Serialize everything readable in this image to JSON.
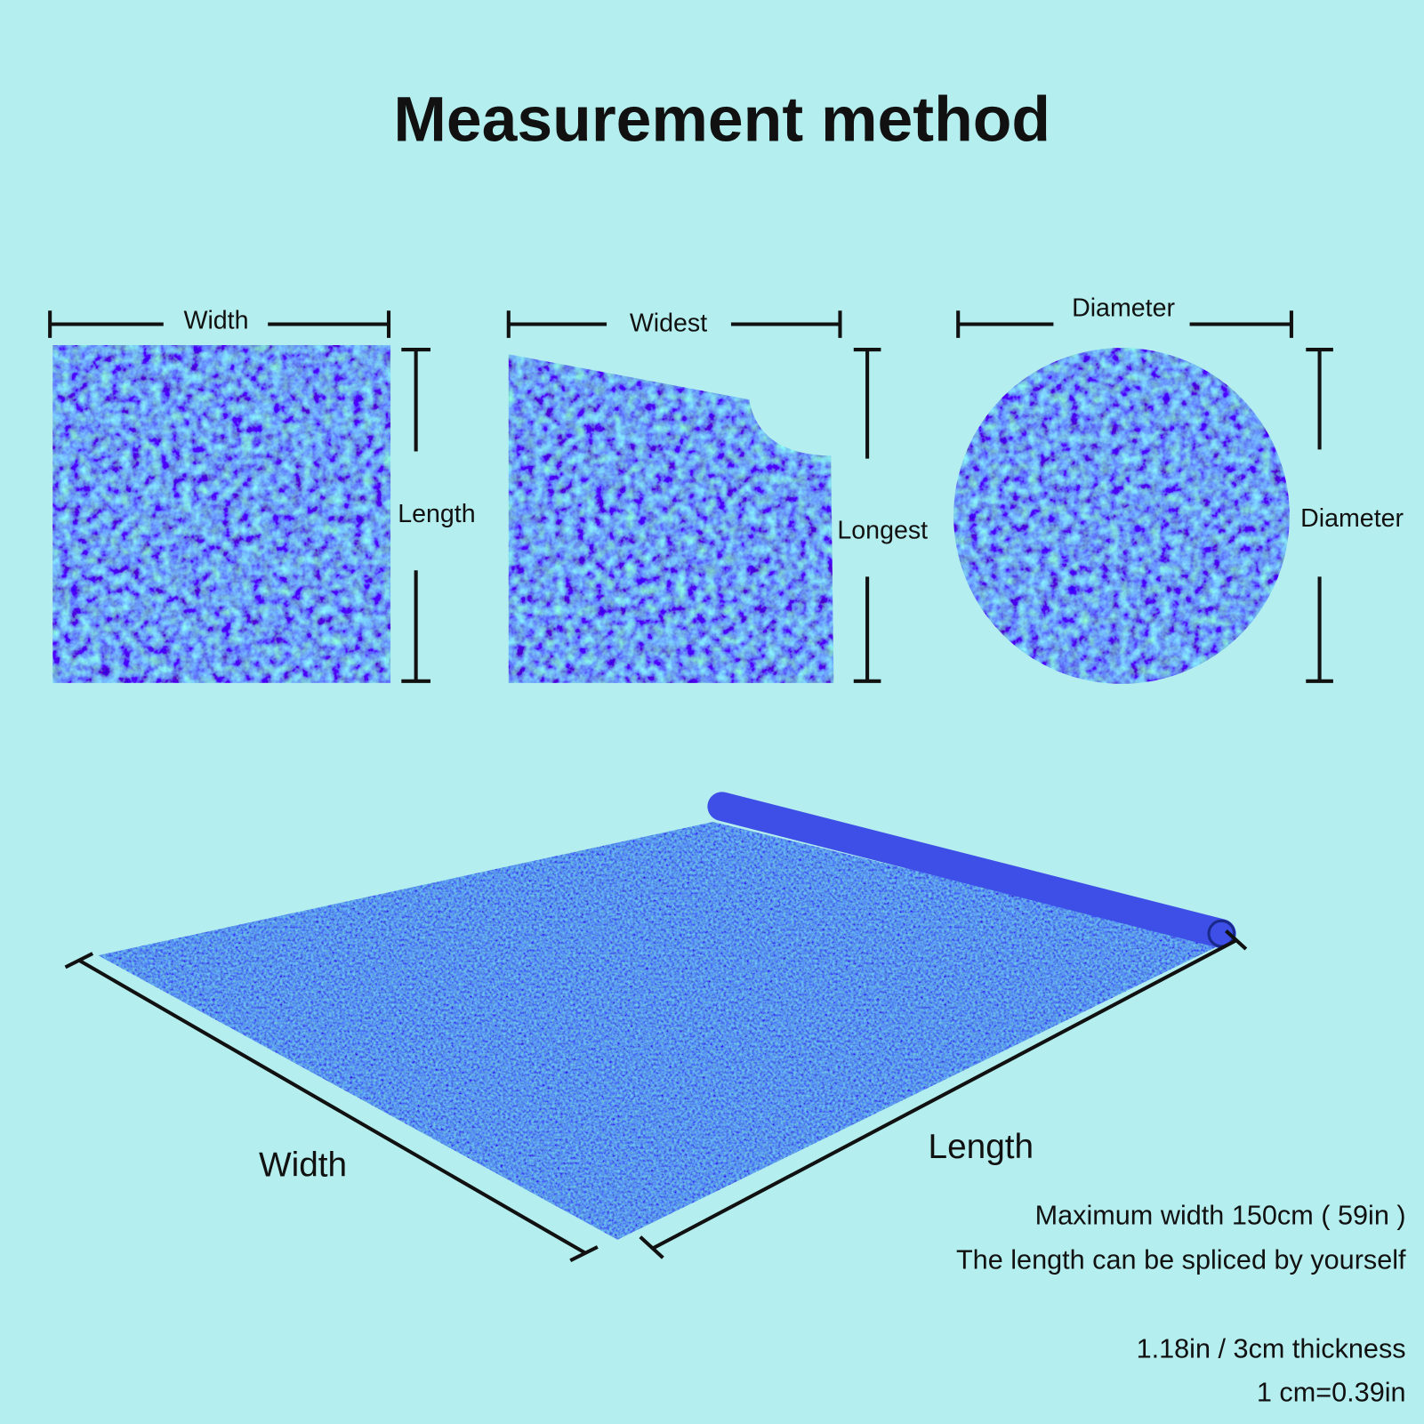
{
  "title": "Measurement method",
  "shapes": [
    {
      "top_label": "Width",
      "side_label": "Length"
    },
    {
      "top_label": "Widest",
      "side_label": "Longest"
    },
    {
      "top_label": "Diameter",
      "side_label": "Diameter"
    }
  ],
  "roll": {
    "width_label": "Width",
    "length_label": "Length"
  },
  "notes": [
    "Maximum width 150cm ( 59in )",
    "The length can be spliced by yourself",
    "1.18in / 3cm thickness",
    "1 cm=0.39in"
  ]
}
